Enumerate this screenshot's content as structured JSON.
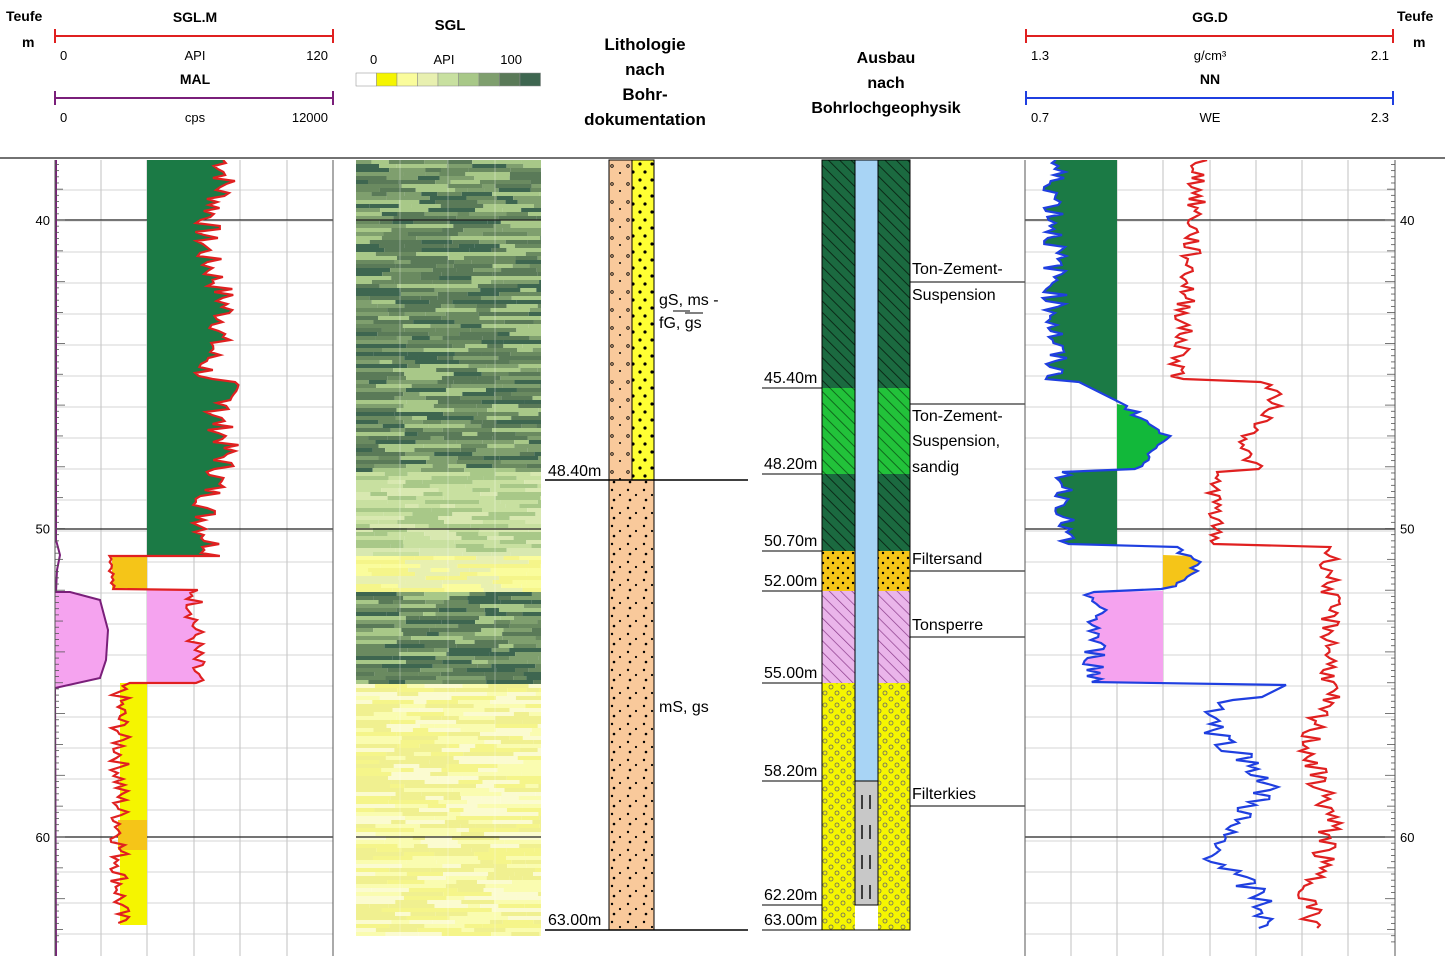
{
  "header": {
    "depth_label_left": "Teufe",
    "depth_unit_left": "m",
    "depth_label_right": "Teufe",
    "depth_unit_right": "m",
    "track1": {
      "curve1": {
        "name": "SGL.M",
        "min": "0",
        "unit": "API",
        "max": "120",
        "color": "#e02020"
      },
      "curve2": {
        "name": "MAL",
        "min": "0",
        "unit": "cps",
        "max": "12000",
        "color": "#7a1f7a"
      }
    },
    "track2": {
      "name": "SGL",
      "min": "0",
      "unit": "API",
      "max": "100"
    },
    "track3": {
      "line1": "Lithologie",
      "line2": "nach",
      "line3": "Bohr-",
      "line4": "dokumentation"
    },
    "track4": {
      "line1": "Ausbau",
      "line2": "nach",
      "line3": "Bohrlochgeophysik"
    },
    "track5": {
      "curve1": {
        "name": "GG.D",
        "min": "1.3",
        "unit": "g/cm³",
        "max": "2.1",
        "color": "#e02020"
      },
      "curve2": {
        "name": "NN",
        "min": "0.7",
        "unit": "WE",
        "max": "2.3",
        "color": "#1f3fe0"
      }
    }
  },
  "depth_ticks_left": [
    "40",
    "50",
    "60"
  ],
  "depth_ticks_right": [
    "40",
    "50",
    "60"
  ],
  "lithology": {
    "boundaries": [
      "48.40m",
      "63.00m"
    ],
    "units": [
      {
        "label1": "gS, ms -",
        "label2": "fG, gs"
      },
      {
        "label1": "mS, gs",
        "label2": ""
      }
    ]
  },
  "completion": {
    "depths": [
      "45.40m",
      "48.20m",
      "50.70m",
      "52.00m",
      "55.00m",
      "58.20m",
      "62.20m",
      "63.00m"
    ],
    "materials": [
      {
        "l1": "Ton-Zement-",
        "l2": "Suspension",
        "l3": ""
      },
      {
        "l1": "Ton-Zement-",
        "l2": "Suspension,",
        "l3": "sandig"
      },
      {
        "l1": "Filtersand",
        "l2": "",
        "l3": ""
      },
      {
        "l1": "Tonsperre",
        "l2": "",
        "l3": ""
      },
      {
        "l1": "Filterkies",
        "l2": "",
        "l3": ""
      }
    ]
  },
  "colors": {
    "clay_dark_green": "#1b7a45",
    "sandy_green": "#12b83a",
    "filtersand_orange": "#f5c518",
    "tonsperre_pink": "#f5a3ef",
    "filterkies_yellow": "#f5f500",
    "sand_tan": "#f9c99b",
    "casing_blue": "#a8d4f5"
  }
}
